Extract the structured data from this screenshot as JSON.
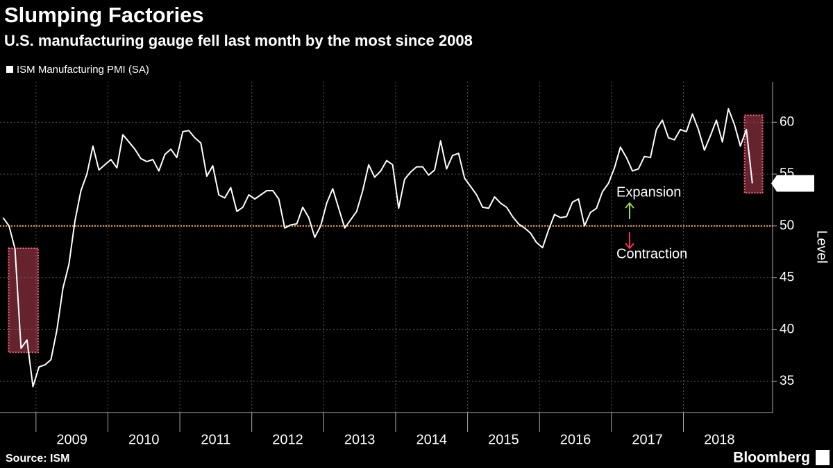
{
  "chart_data": {
    "type": "line",
    "title": "Slumping Factories",
    "subtitle": "U.S. manufacturing gauge fell last month by the most since 2008",
    "y_label": "Level",
    "source": "Source: ISM",
    "brand": "Bloomberg",
    "x": [
      2008.542,
      2008.625,
      2008.708,
      2008.792,
      2008.875,
      2008.958,
      2009.042,
      2009.125,
      2009.208,
      2009.292,
      2009.375,
      2009.458,
      2009.542,
      2009.625,
      2009.708,
      2009.792,
      2009.875,
      2009.958,
      2010.042,
      2010.125,
      2010.208,
      2010.292,
      2010.375,
      2010.458,
      2010.542,
      2010.625,
      2010.708,
      2010.792,
      2010.875,
      2010.958,
      2011.042,
      2011.125,
      2011.208,
      2011.292,
      2011.375,
      2011.458,
      2011.542,
      2011.625,
      2011.708,
      2011.792,
      2011.875,
      2011.958,
      2012.042,
      2012.125,
      2012.208,
      2012.292,
      2012.375,
      2012.458,
      2012.542,
      2012.625,
      2012.708,
      2012.792,
      2012.875,
      2012.958,
      2013.042,
      2013.125,
      2013.208,
      2013.292,
      2013.375,
      2013.458,
      2013.542,
      2013.625,
      2013.708,
      2013.792,
      2013.875,
      2013.958,
      2014.042,
      2014.125,
      2014.208,
      2014.292,
      2014.375,
      2014.458,
      2014.542,
      2014.625,
      2014.708,
      2014.792,
      2014.875,
      2014.958,
      2015.042,
      2015.125,
      2015.208,
      2015.292,
      2015.375,
      2015.458,
      2015.542,
      2015.625,
      2015.708,
      2015.792,
      2015.875,
      2015.958,
      2016.042,
      2016.125,
      2016.208,
      2016.292,
      2016.375,
      2016.458,
      2016.542,
      2016.625,
      2016.708,
      2016.792,
      2016.875,
      2016.958,
      2017.042,
      2017.125,
      2017.208,
      2017.292,
      2017.375,
      2017.458,
      2017.542,
      2017.625,
      2017.708,
      2017.792,
      2017.875,
      2017.958,
      2018.042,
      2018.125,
      2018.208,
      2018.292,
      2018.375,
      2018.458,
      2018.542,
      2018.625,
      2018.708,
      2018.792,
      2018.875,
      2018.958
    ],
    "series": [
      {
        "name": "ISM Manufacturing PMI (SA)",
        "color": "#ffffff",
        "values": [
          50.8,
          50.0,
          47.8,
          38.2,
          39.0,
          34.5,
          36.4,
          36.6,
          37.1,
          40.0,
          44.0,
          46.3,
          50.5,
          53.4,
          55.0,
          57.7,
          55.4,
          55.9,
          56.4,
          55.6,
          58.8,
          58.1,
          57.4,
          56.5,
          56.2,
          56.4,
          55.3,
          56.9,
          57.4,
          56.6,
          59.1,
          59.2,
          58.5,
          58.0,
          54.8,
          55.8,
          53.0,
          52.7,
          53.7,
          51.4,
          51.8,
          53.0,
          52.6,
          53.0,
          53.4,
          53.4,
          52.6,
          49.8,
          50.1,
          50.2,
          51.8,
          50.8,
          48.9,
          50.0,
          52.2,
          53.6,
          51.7,
          49.8,
          50.6,
          51.4,
          53.4,
          55.9,
          54.7,
          55.3,
          56.3,
          55.9,
          51.7,
          54.5,
          55.2,
          55.7,
          55.7,
          54.9,
          55.4,
          58.2,
          55.5,
          56.8,
          57.0,
          54.6,
          53.8,
          53.0,
          51.8,
          51.7,
          52.8,
          52.2,
          51.8,
          50.9,
          50.2,
          49.8,
          49.3,
          48.4,
          47.9,
          49.6,
          51.1,
          50.8,
          50.9,
          52.3,
          52.6,
          50.0,
          51.3,
          51.7,
          53.3,
          54.1,
          55.6,
          57.6,
          56.6,
          55.3,
          55.5,
          56.7,
          56.6,
          59.3,
          60.2,
          58.5,
          58.3,
          59.3,
          59.1,
          60.8,
          59.3,
          57.3,
          58.7,
          60.2,
          58.1,
          61.3,
          59.8,
          57.7,
          59.3,
          54.1
        ]
      }
    ],
    "xlim": [
      2008.5,
      2019.24
    ],
    "xticks": [
      2009,
      2010,
      2011,
      2012,
      2013,
      2014,
      2015,
      2016,
      2017,
      2018
    ],
    "ylim": [
      32,
      63.9
    ],
    "yticks": [
      35,
      40,
      45,
      50,
      55,
      60
    ],
    "grid": true,
    "reference_line": {
      "value": 50,
      "color": "#f5a623"
    },
    "highlights": [
      {
        "x": [
          2008.62,
          2009.03
        ],
        "y": [
          37.8,
          47.85
        ]
      },
      {
        "x": [
          2018.85,
          2019.1
        ],
        "y": [
          53.18,
          60.67
        ]
      }
    ],
    "annotations": [
      {
        "text": "Expansion",
        "color": "#9fd94a"
      },
      {
        "text": "Contraction",
        "color": "#ff2d55"
      }
    ]
  }
}
